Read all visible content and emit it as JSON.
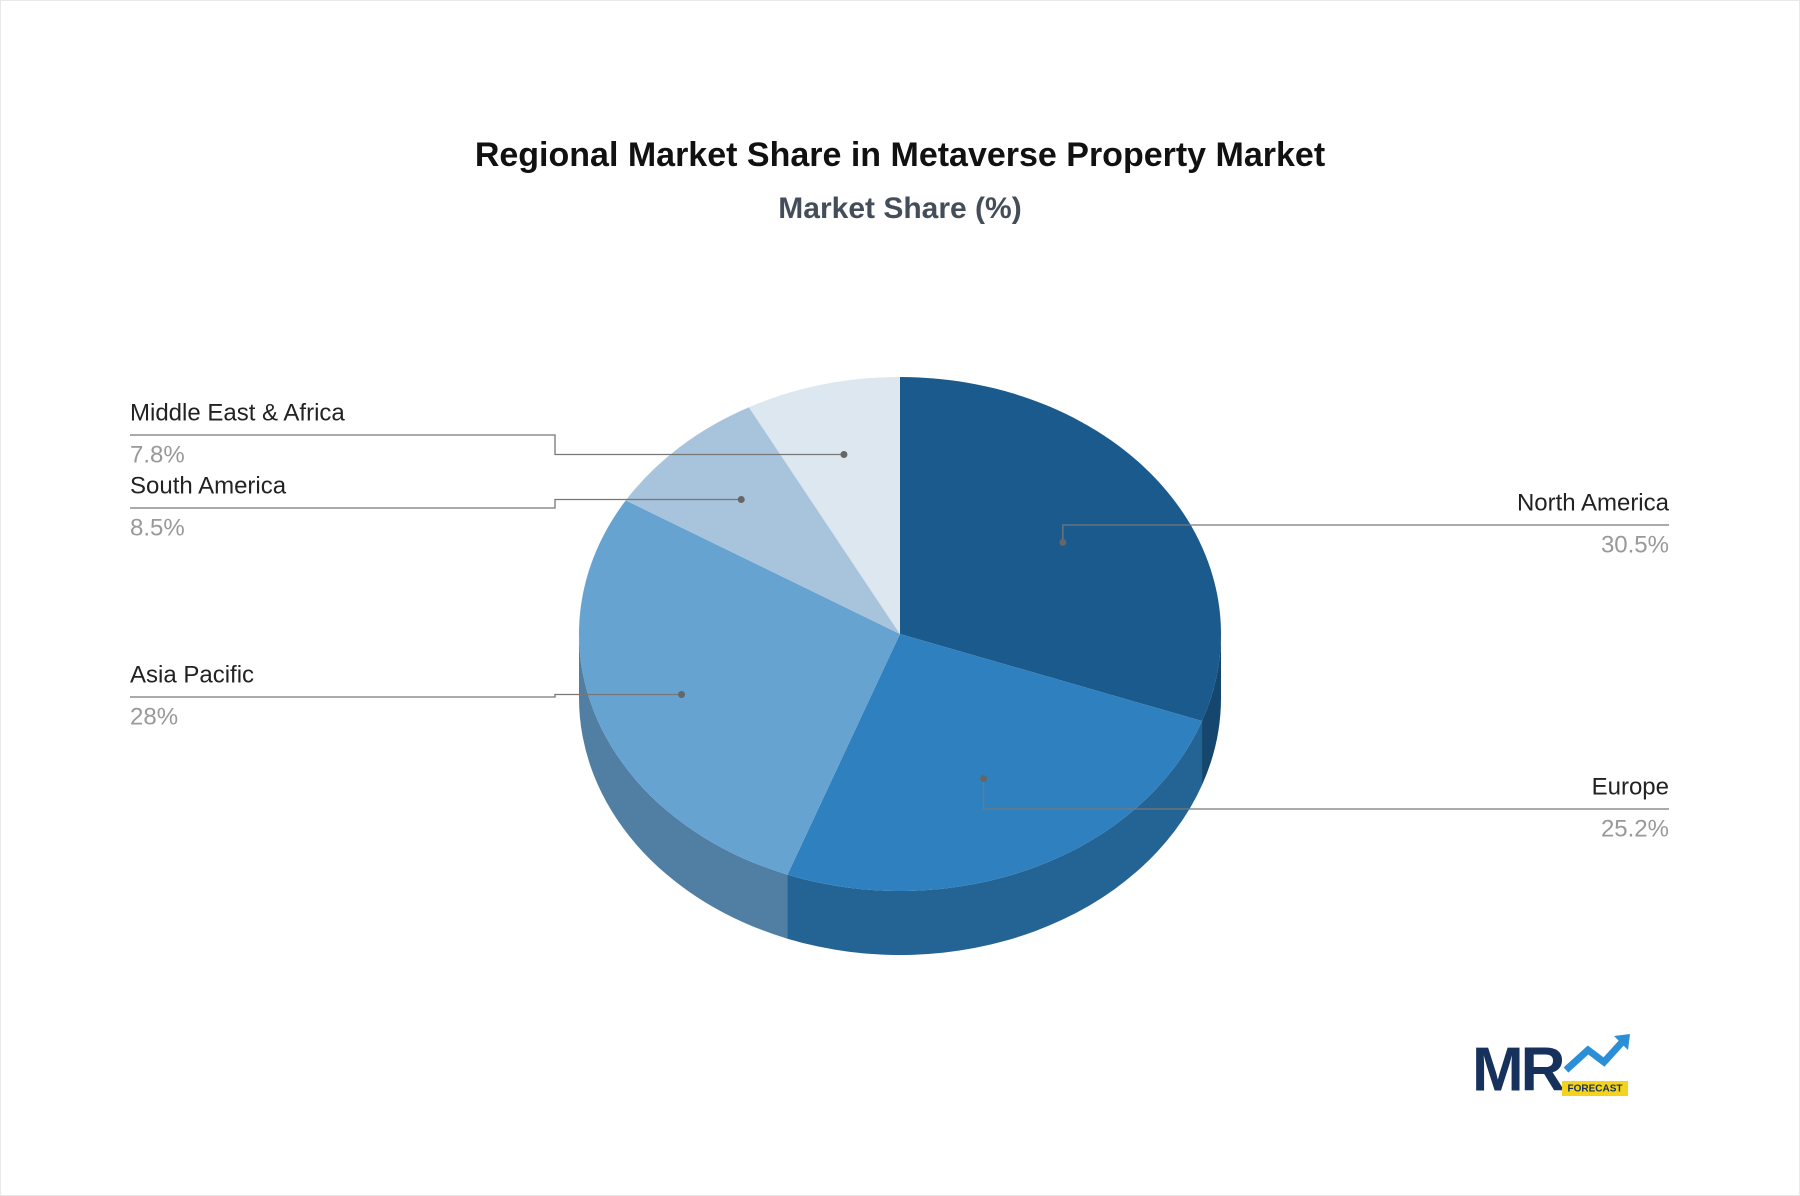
{
  "chart_data": {
    "type": "pie3d",
    "title": "Regional Market Share in Metaverse Property Market",
    "subtitle": "Market Share (%)",
    "categories": [
      "North America",
      "Europe",
      "Asia Pacific",
      "South America",
      "Middle East & Africa"
    ],
    "values": [
      30.5,
      25.2,
      28,
      8.5,
      7.8
    ],
    "value_labels": [
      "30.5%",
      "25.2%",
      "28%",
      "8.5%",
      "7.8%"
    ],
    "colors": [
      "#1b5a8c",
      "#2e80bf",
      "#67a3d1",
      "#a8c4dd",
      "#dde7f0"
    ]
  },
  "logo": {
    "text": "MR",
    "tag": "FORECAST"
  }
}
